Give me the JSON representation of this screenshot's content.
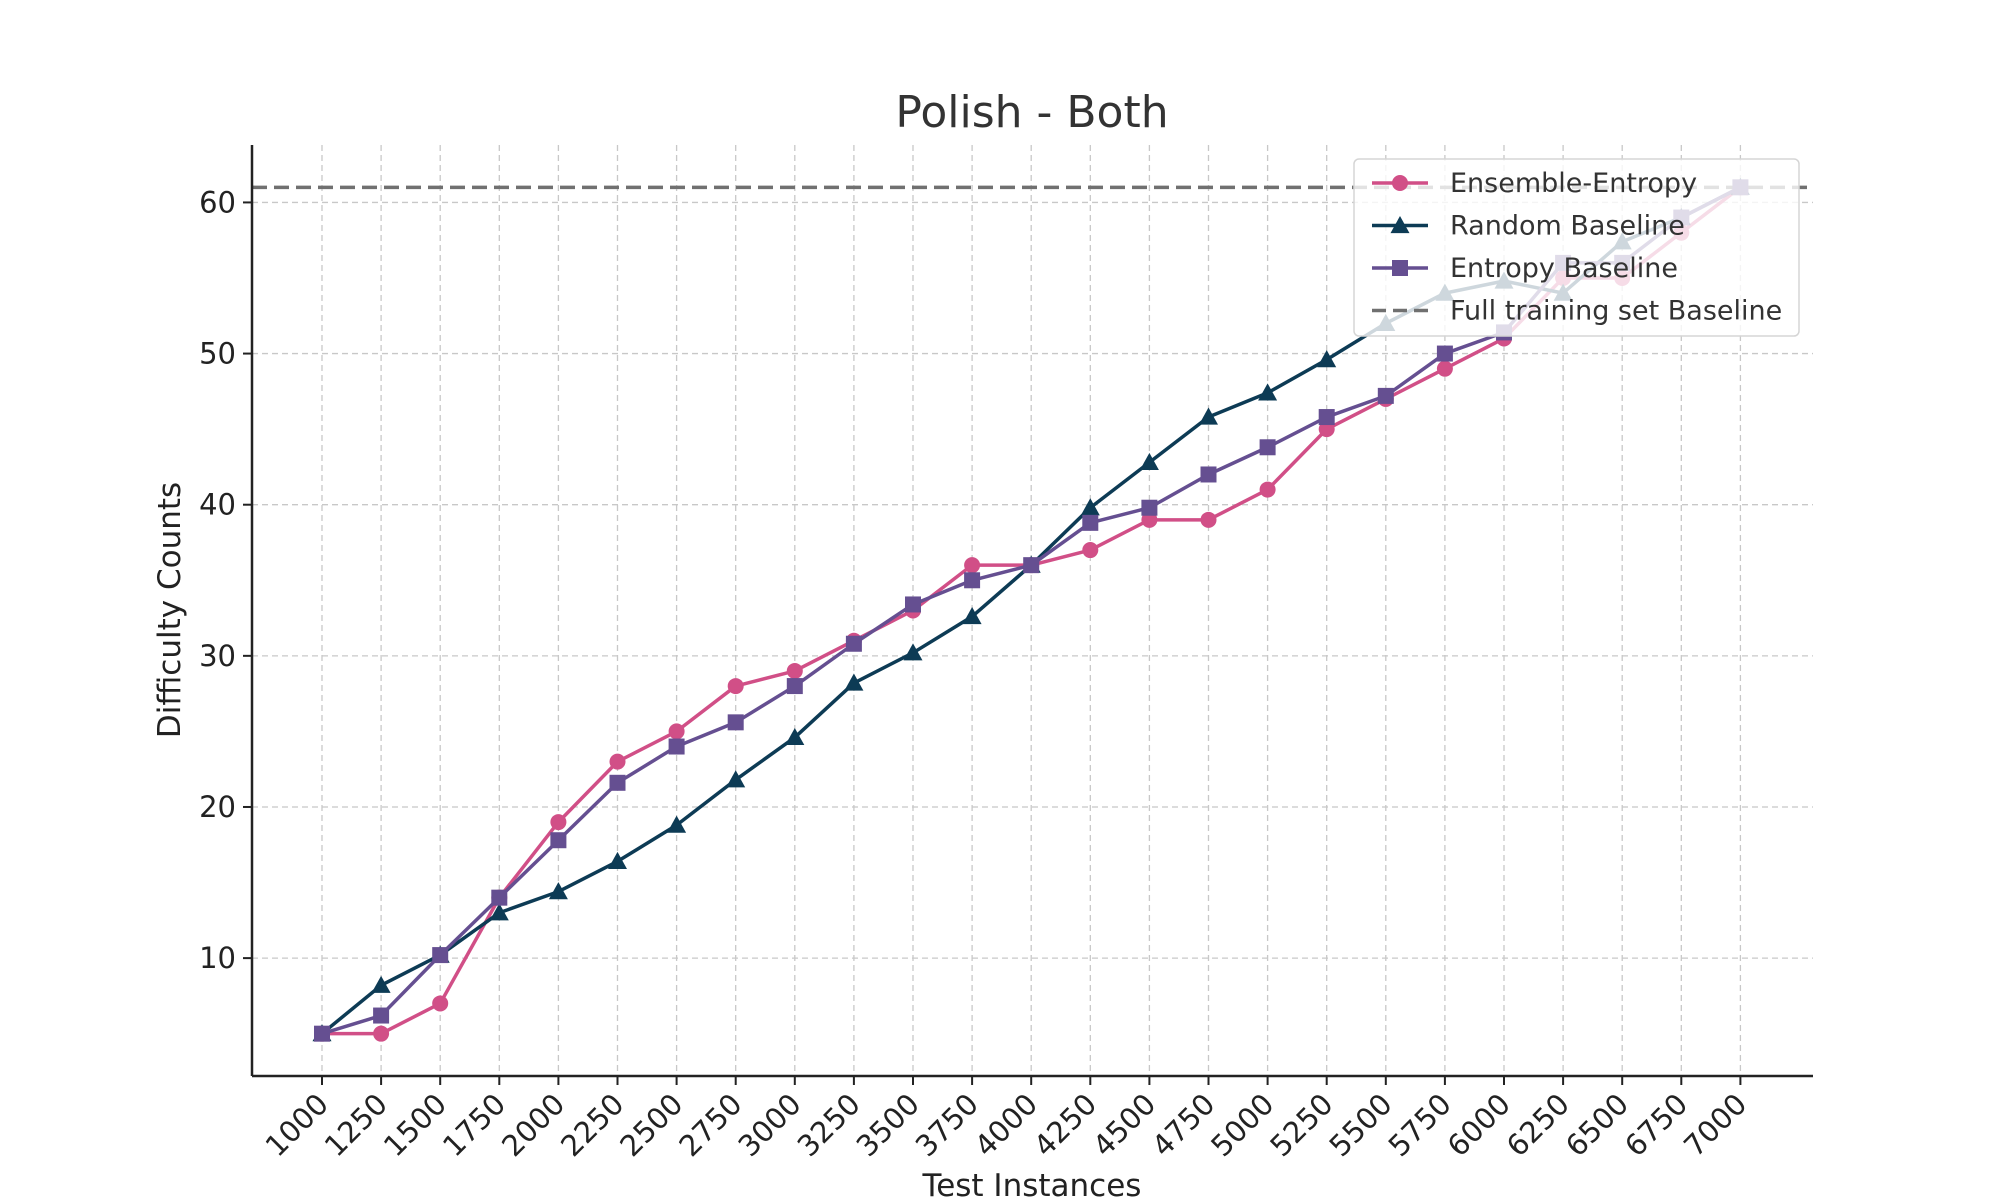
{
  "chart_data": {
    "type": "line",
    "title": "Polish - Both",
    "xlabel": "Test Instances",
    "ylabel": "Difficulty Counts",
    "x": [
      "1000",
      "1250",
      "1500",
      "1750",
      "2000",
      "2250",
      "2500",
      "2750",
      "3000",
      "3250",
      "3500",
      "3750",
      "4000",
      "4250",
      "4500",
      "4750",
      "5000",
      "5250",
      "5500",
      "5750",
      "6000",
      "6250",
      "6500",
      "6750",
      "7000"
    ],
    "yticks": [
      10,
      20,
      30,
      40,
      50,
      60
    ],
    "ylim": [
      2.2,
      63.8
    ],
    "grid": true,
    "legend_position": "top-right",
    "series": [
      {
        "name": "Ensemble-Entropy",
        "color": "#d14f87",
        "marker": "circle",
        "values": [
          5,
          5,
          7,
          14,
          19,
          23,
          25,
          28,
          29,
          31,
          33,
          36,
          36,
          37,
          39,
          39,
          41,
          45,
          47,
          49,
          51,
          55,
          55,
          58,
          61
        ]
      },
      {
        "name": "Random Baseline",
        "color": "#0d3b55",
        "marker": "triangle",
        "values": [
          5,
          8.2,
          10.2,
          13,
          14.4,
          16.4,
          18.8,
          21.8,
          24.6,
          28.2,
          30.2,
          32.6,
          36,
          39.8,
          42.8,
          45.8,
          47.4,
          49.6,
          52,
          54,
          54.8,
          54,
          57.4,
          59,
          61
        ]
      },
      {
        "name": "Entropy Baseline",
        "color": "#654f91",
        "marker": "square",
        "values": [
          5,
          6.2,
          10.2,
          14,
          17.8,
          21.6,
          24,
          25.6,
          28,
          30.8,
          33.4,
          35,
          36,
          38.8,
          39.8,
          42,
          43.8,
          45.8,
          47.2,
          50,
          51.4,
          56,
          56,
          59,
          61
        ]
      }
    ],
    "reference_line": {
      "name": "Full training set Baseline",
      "value": 61,
      "color": "#707070"
    }
  }
}
